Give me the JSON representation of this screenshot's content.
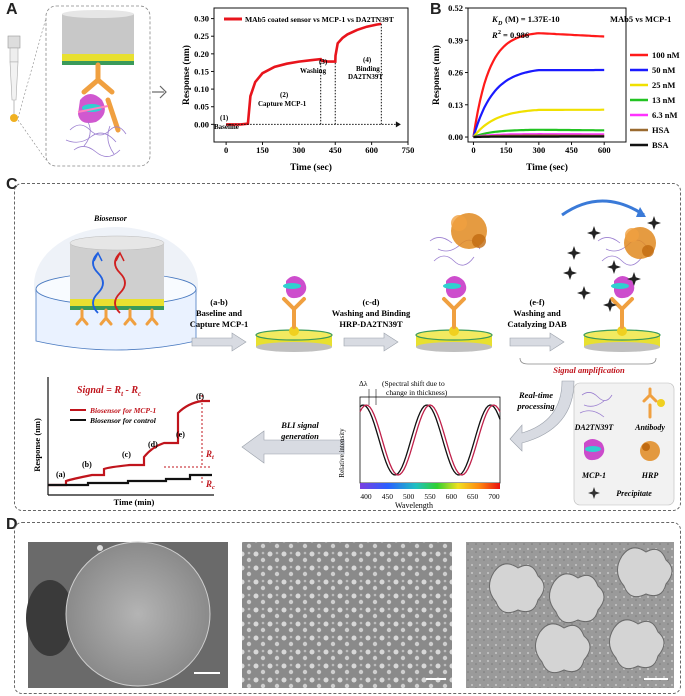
{
  "panel_letters": {
    "a": "A",
    "b": "B",
    "c": "C",
    "d": "D"
  },
  "panel_a": {
    "legend": "MAb5 coated sensor vs MCP-1 vs DA2TN39T",
    "steps": [
      {
        "num": "(1)",
        "label": "Baseline"
      },
      {
        "num": "(2)",
        "label": "Capture MCP-1"
      },
      {
        "num": "(3)",
        "label": "Washing"
      },
      {
        "num": "(4)",
        "label": "Binding DA2TN39T"
      }
    ]
  },
  "panel_b": {
    "kd_label": "K",
    "kd_sub": "D",
    "kd_value": "(M) = 1.37E-10",
    "r2_label": "R",
    "r2_sup": "2",
    "r2_value": "= 0.986",
    "title": "MAb5 vs MCP-1"
  },
  "panel_c": {
    "biosensor": "Biosensor",
    "step_ab": [
      "(a-b)",
      "Baseline and",
      "Capture MCP-1"
    ],
    "step_cd": [
      "(c-d)",
      "Washing and Binding",
      "HRP-DA2TN39T"
    ],
    "step_ef": [
      "(e-f)",
      "Washing and",
      "Catalyzing DAB"
    ],
    "signal_amplification": "Signal amplification",
    "realtime": [
      "Real-time",
      "processing"
    ],
    "bli": [
      "BLI signal",
      "generation"
    ],
    "signal_eq": "Signal = R",
    "signal_eq_sub1": "t",
    "signal_eq_mid": " - R",
    "signal_eq_sub2": "c",
    "legend_mcp1": "Biosensor for MCP-1",
    "legend_control": "Biosensor for control",
    "ylabel": "Response (nm)",
    "xlabel": "Time (min)",
    "step_markers": [
      "(a)",
      "(b)",
      "(c)",
      "(d)",
      "(e)",
      "(f)"
    ],
    "rt": "R",
    "rt_sub": "t",
    "rc": "R",
    "rc_sub": "c",
    "spectral_note": "(Spectral shift due to change in thickness)",
    "delta": "Δλ",
    "rel_intensity": "Relative intensity",
    "wavelength": "Wavelength",
    "wl_ticks": [
      "400",
      "450",
      "500",
      "550",
      "600",
      "650",
      "700"
    ],
    "legend_items": [
      "DA2TN39T",
      "Antibody",
      "MCP-1",
      "HRP",
      "Precipitate"
    ]
  },
  "chart_data": [
    {
      "type": "line",
      "title": "",
      "xlabel": "Time (sec)",
      "ylabel": "Response (nm)",
      "xlim": [
        -50,
        750
      ],
      "ylim": [
        -0.05,
        0.33
      ],
      "xticks": [
        0,
        150,
        300,
        450,
        600,
        750
      ],
      "yticks": [
        0.0,
        0.05,
        0.1,
        0.15,
        0.2,
        0.25,
        0.3
      ],
      "ytick_labels": [
        "0.00",
        "0.05",
        "0.10",
        "0.15",
        "0.20",
        "0.25",
        "0.30"
      ],
      "series": [
        {
          "name": "MAb5 coated sensor vs MCP-1 vs DA2TN39T",
          "color": "#e8141c",
          "x": [
            0,
            60,
            90,
            100,
            120,
            150,
            200,
            250,
            300,
            350,
            390,
            395,
            420,
            450,
            451,
            460,
            480,
            500,
            540,
            580,
            620,
            640
          ],
          "y": [
            0.0,
            0.0,
            0.002,
            0.08,
            0.12,
            0.145,
            0.163,
            0.172,
            0.178,
            0.182,
            0.185,
            0.18,
            0.178,
            0.178,
            0.195,
            0.23,
            0.245,
            0.255,
            0.268,
            0.277,
            0.283,
            0.285
          ]
        }
      ]
    },
    {
      "type": "line",
      "title": "",
      "xlabel": "Time (sec)",
      "ylabel": "Response (nm)",
      "xlim": [
        -25,
        700
      ],
      "ylim": [
        -0.02,
        0.52
      ],
      "xticks": [
        0,
        150,
        300,
        450,
        600
      ],
      "yticks": [
        0.0,
        0.13,
        0.26,
        0.39,
        0.52
      ],
      "ytick_labels": [
        "0.00",
        "0.13",
        "0.26",
        "0.39",
        "0.52"
      ],
      "series": [
        {
          "name": "100 nM",
          "color": "#ff1a1a",
          "plateau": 0.425,
          "end": 0.405,
          "rate": 0.014
        },
        {
          "name": "50 nM",
          "color": "#1a1aff",
          "plateau": 0.28,
          "end": 0.27,
          "rate": 0.011
        },
        {
          "name": "25 nM",
          "color": "#f0e000",
          "plateau": 0.115,
          "end": 0.11,
          "rate": 0.01
        },
        {
          "name": "13 nM",
          "color": "#22c322",
          "plateau": 0.03,
          "end": 0.027,
          "rate": 0.012
        },
        {
          "name": "6.3 nM",
          "color": "#ff33ff",
          "plateau": 0.012,
          "end": 0.011,
          "rate": 0.012
        },
        {
          "name": "HSA",
          "color": "#9a6a30",
          "plateau": 0.006,
          "end": 0.005,
          "rate": 0.012
        },
        {
          "name": "BSA",
          "color": "#111111",
          "plateau": 0.002,
          "end": 0.002,
          "rate": 0.012
        }
      ]
    }
  ]
}
